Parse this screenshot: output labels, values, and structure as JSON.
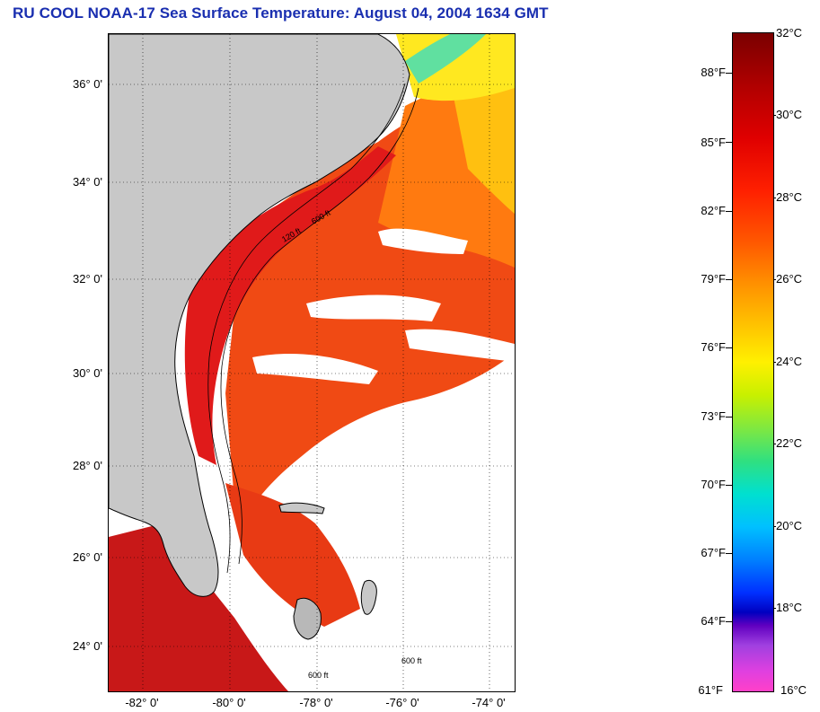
{
  "title": "RU COOL  NOAA-17  Sea Surface Temperature:  August 04, 2004 1634 GMT",
  "map": {
    "latitude_labels": [
      "36° 0'",
      "34° 0'",
      "32° 0'",
      "30° 0'",
      "28° 0'",
      "26° 0'",
      "24° 0'"
    ],
    "longitude_labels": [
      "-82° 0'",
      "-80° 0'",
      "-78° 0'",
      "-76° 0'",
      "-74° 0'"
    ],
    "contour_labels": [
      "120 ft",
      "600 ft",
      "600 ft",
      "600 ft"
    ],
    "colors": {
      "land": "#c8c8c8",
      "no_data": "#ffffff",
      "warm": "#e82a10",
      "hot": "#c01010",
      "cool": "#ffd400"
    }
  },
  "colorbar": {
    "fahrenheit_labels": [
      "88°F",
      "85°F",
      "82°F",
      "79°F",
      "76°F",
      "73°F",
      "70°F",
      "67°F",
      "64°F",
      "61°F"
    ],
    "celsius_labels": [
      "32°C",
      "30°C",
      "28°C",
      "26°C",
      "24°C",
      "22°C",
      "20°C",
      "18°C",
      "16°C"
    ]
  }
}
